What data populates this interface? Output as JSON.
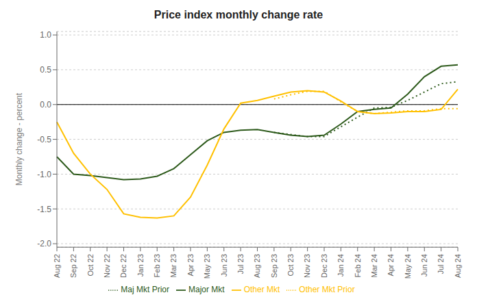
{
  "chart_data": {
    "type": "line",
    "title": "Price index monthly  change rate",
    "y_label": "Monthly change - percent",
    "categories": [
      "Aug 22",
      "Sep 22",
      "Oct 22",
      "Nov 22",
      "Dec 22",
      "Jan 23",
      "Feb 23",
      "Mar 23",
      "Apr 23",
      "May 23",
      "Jun 23",
      "Jul 23",
      "Aug 23",
      "Sep 23",
      "Oct 23",
      "Nov 23",
      "Dec 23",
      "Jan 24",
      "Feb 24",
      "Mar 24",
      "Apr 24",
      "May 24",
      "Jun 24",
      "Jul 24",
      "Aug 24"
    ],
    "series": [
      {
        "name": "Major Mkt",
        "color": "#2d5a1b",
        "line_style": "solid",
        "values": [
          -0.75,
          -1.0,
          -1.02,
          -1.05,
          -1.08,
          -1.07,
          -1.03,
          -0.92,
          -0.72,
          -0.52,
          -0.4,
          -0.37,
          -0.36,
          -0.4,
          -0.44,
          -0.46,
          -0.44,
          -0.28,
          -0.1,
          -0.07,
          -0.05,
          0.15,
          0.4,
          0.55,
          0.57
        ]
      },
      {
        "name": "Maj Mkt Prior",
        "color": "#2d5a1b",
        "line_style": "dotted",
        "values": [
          null,
          null,
          null,
          null,
          null,
          null,
          null,
          null,
          null,
          null,
          null,
          null,
          null,
          -0.4,
          -0.43,
          -0.46,
          -0.46,
          -0.32,
          -0.18,
          -0.05,
          -0.04,
          0.06,
          0.18,
          0.3,
          0.33
        ]
      },
      {
        "name": "Other Mkt",
        "color": "#ffc000",
        "line_style": "solid",
        "values": [
          -0.25,
          -0.7,
          -1.0,
          -1.22,
          -1.57,
          -1.62,
          -1.63,
          -1.6,
          -1.33,
          -0.87,
          -0.35,
          0.02,
          0.06,
          0.12,
          0.18,
          0.2,
          0.18,
          0.05,
          -0.1,
          -0.13,
          -0.12,
          -0.1,
          -0.1,
          -0.07,
          0.22
        ]
      },
      {
        "name": "Other Mkt Prior",
        "color": "#ffc000",
        "line_style": "dotted",
        "values": [
          null,
          null,
          null,
          null,
          null,
          null,
          null,
          null,
          null,
          null,
          null,
          null,
          null,
          0.08,
          0.14,
          0.19,
          0.19,
          0.04,
          -0.1,
          -0.13,
          -0.11,
          -0.09,
          -0.09,
          -0.06,
          -0.06
        ]
      }
    ],
    "ylim": [
      -2.05,
      1.05
    ],
    "yticks": [
      {
        "value": -2.0,
        "label": "-2.0"
      },
      -1.5,
      {
        "value": -1.0,
        "label": "-1.0"
      },
      -0.5,
      {
        "value": 0.0,
        "label": "0.0"
      },
      0.5,
      {
        "value": 1.0,
        "label": "1.0"
      }
    ],
    "grid": true,
    "legend": "bottom"
  }
}
